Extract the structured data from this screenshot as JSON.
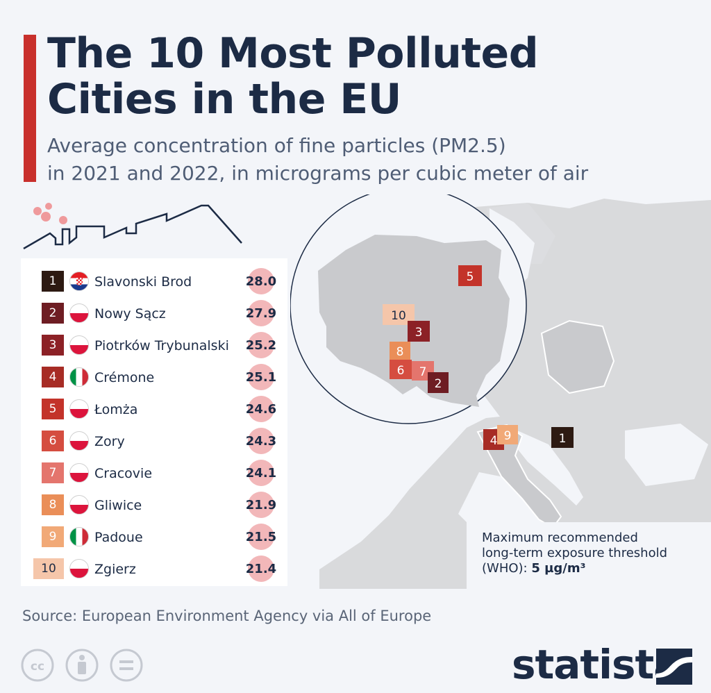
{
  "title_line1": "The 10 Most Polluted",
  "title_line2": "Cities in the EU",
  "subtitle_line1": "Average concentration of fine particles (PM2.5)",
  "subtitle_line2": "in 2021 and 2022, in micrograms per cubic meter of air",
  "colors": {
    "accent": "#c8302c",
    "navy": "#1c2b45",
    "value_bubble": "#f2b7b9",
    "map_land": "#d9dadc",
    "poland_land": "#c9cacd",
    "rank_colors": [
      "#2d1a12",
      "#6e1d23",
      "#8c2126",
      "#a72c25",
      "#c3332a",
      "#d54d40",
      "#e4756d",
      "#ea8e58",
      "#f1a977",
      "#f5c6aa"
    ]
  },
  "chart_data": {
    "type": "bar",
    "title": "The 10 Most Polluted Cities in the EU",
    "subtitle": "Average concentration of fine particles (PM2.5) in 2021 and 2022, in micrograms per cubic meter of air",
    "categories": [
      "Slavonski Brod",
      "Nowy Sącz",
      "Piotrków Trybunalski",
      "Crémone",
      "Łomża",
      "Zory",
      "Cracovie",
      "Gliwice",
      "Padoue",
      "Zgierz"
    ],
    "series": [
      {
        "values": [
          28.0,
          27.9,
          25.2,
          25.1,
          24.6,
          24.3,
          24.1,
          21.9,
          21.5,
          21.4
        ]
      }
    ],
    "ranks": [
      "1",
      "2",
      "3",
      "4",
      "5",
      "6",
      "7",
      "8",
      "9",
      "10"
    ],
    "value_labels": [
      "28.0",
      "27.9",
      "25.2",
      "25.1",
      "24.6",
      "24.3",
      "24.1",
      "21.9",
      "21.5",
      "21.4"
    ],
    "countries": [
      "hr",
      "pl",
      "pl",
      "it",
      "pl",
      "pl",
      "pl",
      "pl",
      "it",
      "pl"
    ]
  },
  "map_markers": [
    "5",
    "10",
    "3",
    "8",
    "6",
    "7",
    "2",
    "4",
    "9",
    "1"
  ],
  "who_note": {
    "line1": "Maximum recommended",
    "line2": "long-term exposure threshold",
    "line3_prefix": "(WHO): ",
    "line3_value": "5 µg/m³"
  },
  "source": "Source: European Environment Agency via All of Europe",
  "brand": "statista",
  "icons": [
    "cc-icon",
    "attribution-icon",
    "no-derivatives-icon",
    "statista-logo-icon"
  ]
}
